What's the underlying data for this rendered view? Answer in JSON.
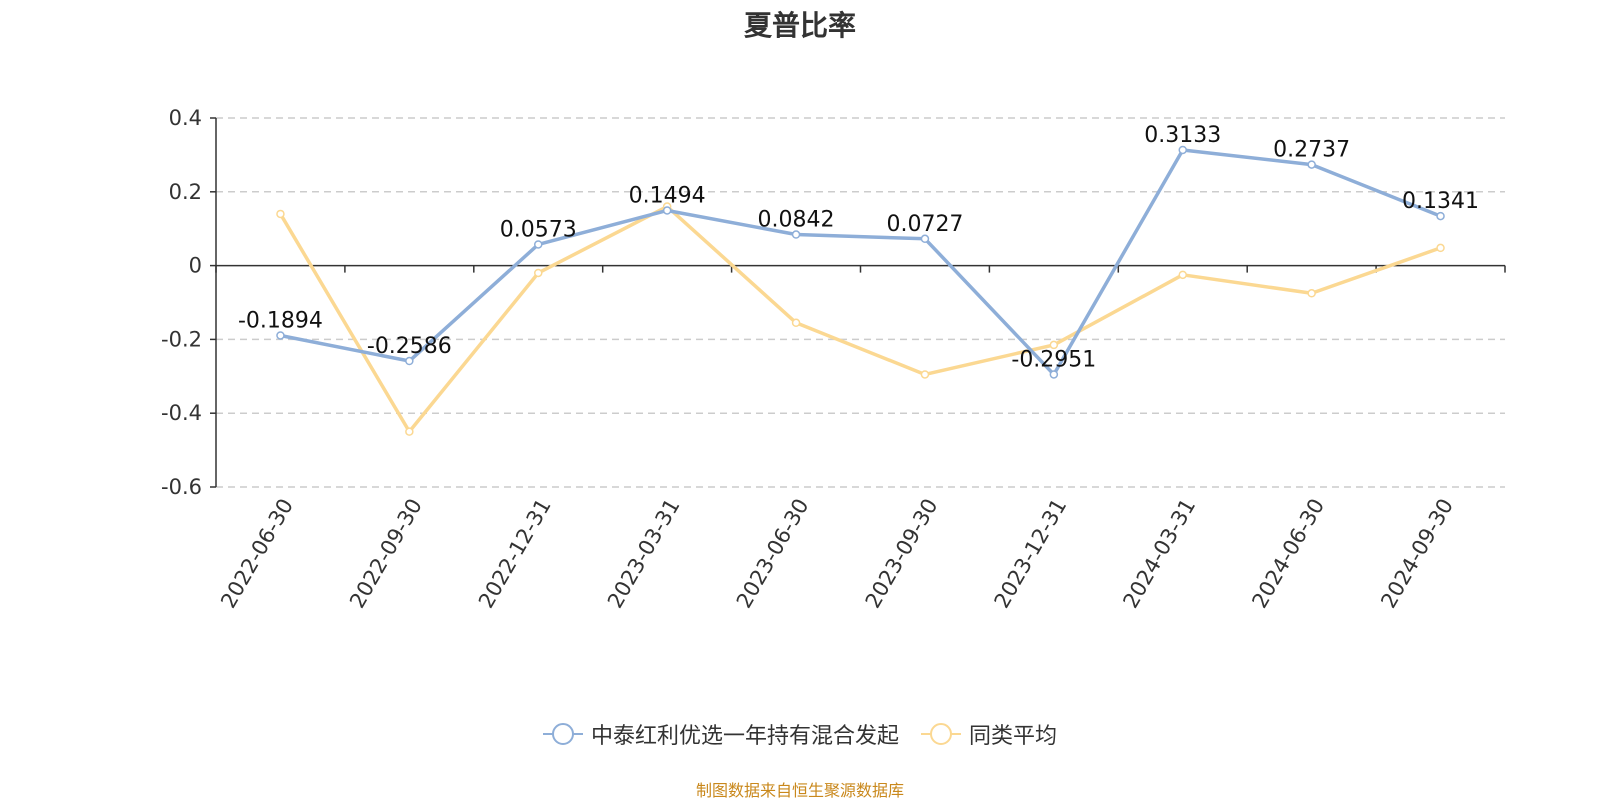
{
  "chart_data": {
    "type": "line",
    "title": "夏普比率",
    "categories": [
      "2022-06-30",
      "2022-09-30",
      "2022-12-31",
      "2023-03-31",
      "2023-06-30",
      "2023-09-30",
      "2023-12-31",
      "2024-03-31",
      "2024-06-30",
      "2024-09-30"
    ],
    "series": [
      {
        "name": "中泰红利优选一年持有混合发起",
        "color": "#8eaed8",
        "values": [
          -0.1894,
          -0.2586,
          0.0573,
          0.1494,
          0.0842,
          0.0727,
          -0.2951,
          0.3133,
          0.2737,
          0.1341
        ],
        "labels": [
          "-0.1894",
          "-0.2586",
          "0.0573",
          "0.1494",
          "0.0842",
          "0.0727",
          "-0.2951",
          "0.3133",
          "0.2737",
          "0.1341"
        ]
      },
      {
        "name": "同类平均",
        "color": "#fbd892",
        "values": [
          0.14,
          -0.45,
          -0.02,
          0.16,
          -0.155,
          -0.295,
          -0.215,
          -0.025,
          -0.075,
          0.048
        ]
      }
    ],
    "ylim": [
      -0.6,
      0.4
    ],
    "yticks": [
      0.4,
      0.2,
      0,
      -0.2,
      -0.4,
      -0.6
    ],
    "ytick_labels": [
      "0.4",
      "0.2",
      "0",
      "-0.2",
      "-0.4",
      "-0.6"
    ],
    "grid": true,
    "legend_position": "bottom"
  },
  "source": "制图数据来自恒生聚源数据库"
}
